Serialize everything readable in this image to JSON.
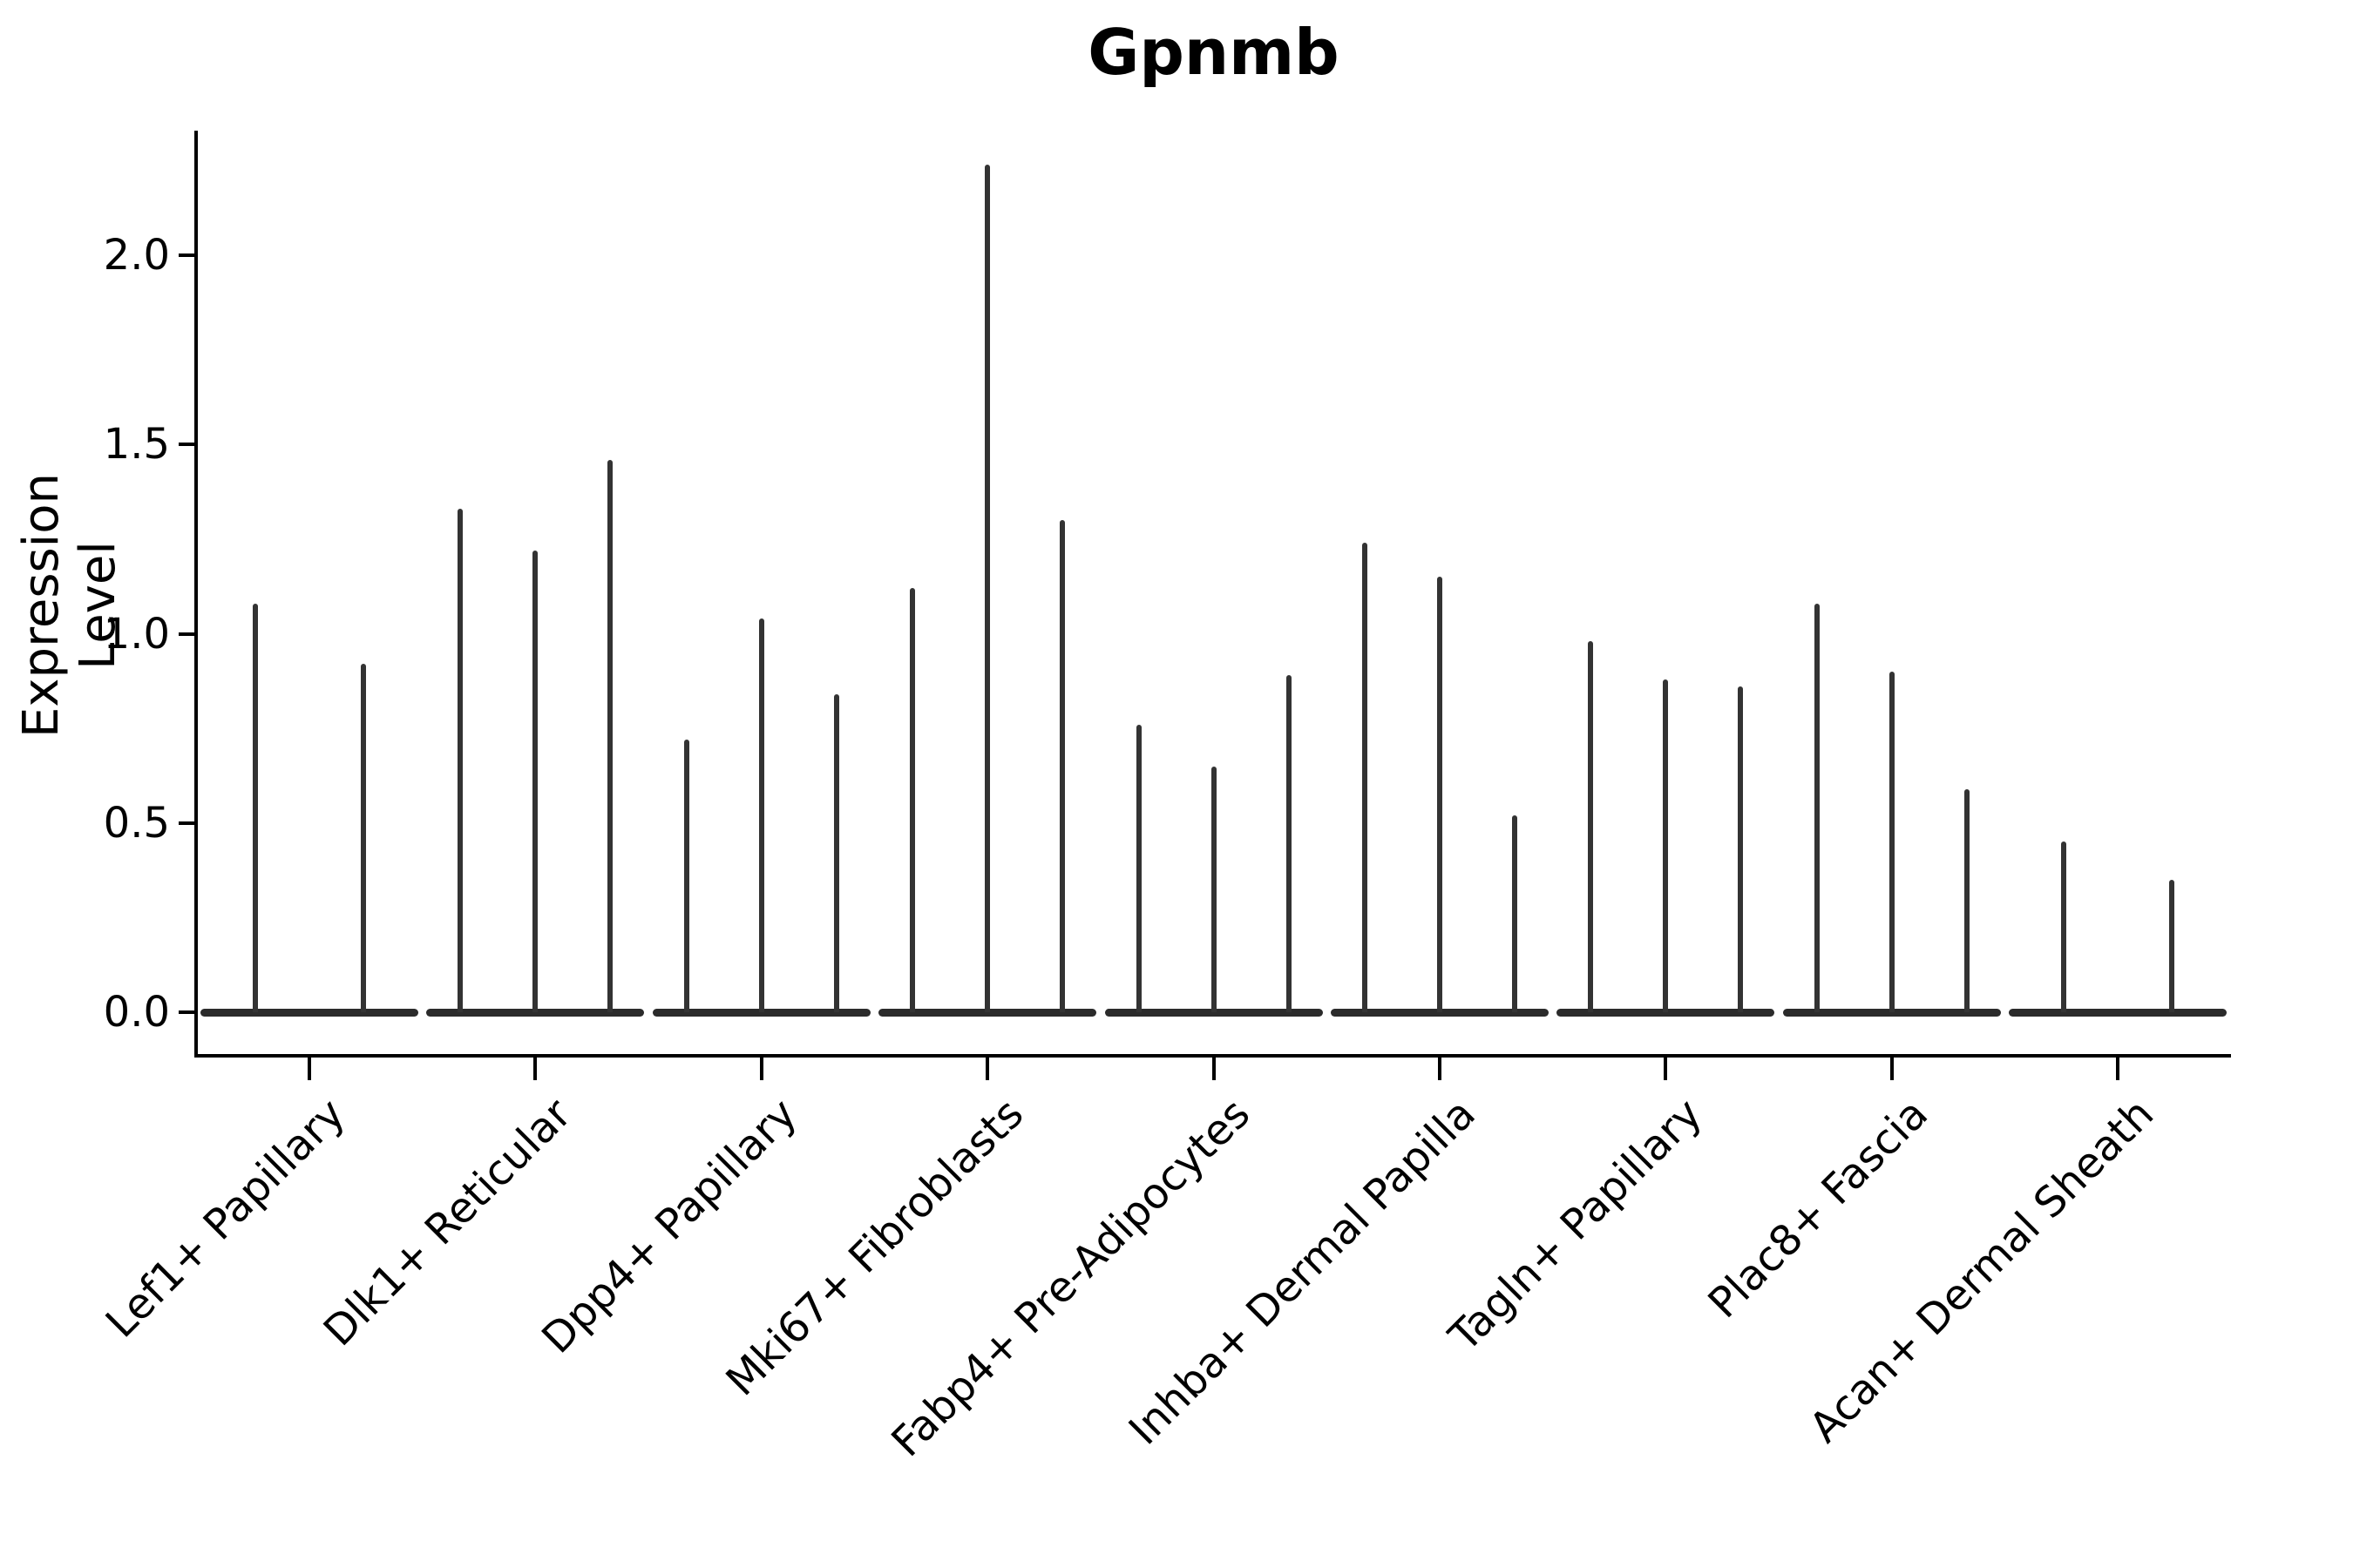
{
  "title": "Gpnmb",
  "axes": {
    "y_label": "Expression Level",
    "x_label": ""
  },
  "chart_data": {
    "type": "violin",
    "title": "Gpnmb",
    "subtitle": "",
    "xlabel": "",
    "ylabel": "Expression Level",
    "ylim": [
      0,
      2.33
    ],
    "ytick_labels": [
      "0.0",
      "0.5",
      "1.0",
      "1.5",
      "2.0"
    ],
    "ytick_values": [
      0.0,
      0.5,
      1.0,
      1.5,
      2.0
    ],
    "grid": false,
    "legend_position": "none",
    "violin_style": "very narrow spikes; density mass concentrated at 0 giving each group a wide flat dark base at y=0",
    "colors": {
      "violin": "#333333",
      "violin_base": "#2b2b2b",
      "axis": "#000000",
      "text": "#000000",
      "background": "#ffffff"
    },
    "categories": [
      "Lef1+ Papillary",
      "Dlk1+ Reticular",
      "Dpp4+ Papillary",
      "Mki67+ Fibroblasts",
      "Fabp4+ Pre-Adipocytes",
      "Inhba+ Dermal Papilla",
      "Tagln+ Papillary",
      "Plac8+ Fascia",
      "Acan+ Dermal Sheath"
    ],
    "groups": [
      {
        "label": "Lef1+ Papillary",
        "violin_peak_expression": [
          1.08,
          0.92
        ]
      },
      {
        "label": "Dlk1+ Reticular",
        "violin_peak_expression": [
          1.33,
          1.22,
          1.46
        ]
      },
      {
        "label": "Dpp4+ Papillary",
        "violin_peak_expression": [
          0.72,
          1.04,
          0.84
        ]
      },
      {
        "label": "Mki67+ Fibroblasts",
        "violin_peak_expression": [
          1.12,
          2.24,
          1.3
        ]
      },
      {
        "label": "Fabp4+ Pre-Adipocytes",
        "violin_peak_expression": [
          0.76,
          0.65,
          0.89
        ]
      },
      {
        "label": "Inhba+ Dermal Papilla",
        "violin_peak_expression": [
          1.24,
          1.15,
          0.52
        ]
      },
      {
        "label": "Tagln+ Papillary",
        "violin_peak_expression": [
          0.98,
          0.88,
          0.86
        ]
      },
      {
        "label": "Plac8+ Fascia",
        "violin_peak_expression": [
          1.08,
          0.9,
          0.59
        ]
      },
      {
        "label": "Acan+ Dermal Sheath",
        "violin_peak_expression": [
          0.45,
          0.35
        ]
      }
    ]
  }
}
